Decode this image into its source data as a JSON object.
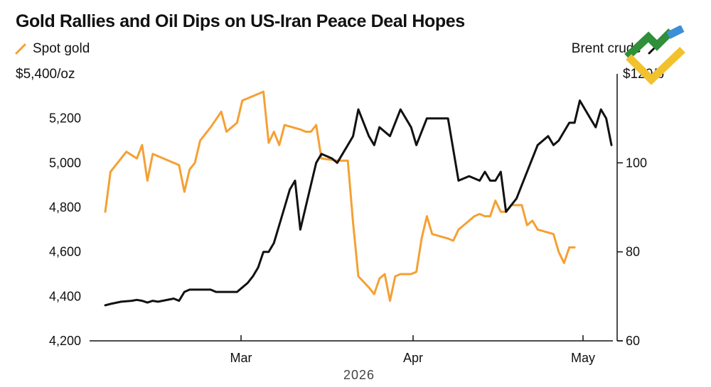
{
  "chart_data": {
    "type": "line",
    "title": "Gold Rallies and Oil Dips on US-Iran Peace Deal Hopes",
    "x_labels": [
      "Mar",
      "Apr",
      "May"
    ],
    "x_axis_caption": "2026",
    "left_axis": {
      "unit_label": "$5,400/oz",
      "ticks": [
        "4,200",
        "4,400",
        "4,600",
        "4,800",
        "5,000",
        "5,200"
      ],
      "ylim": [
        4200,
        5400
      ]
    },
    "right_axis": {
      "unit_label": "$120/b",
      "ticks": [
        "60",
        "80",
        "100"
      ],
      "ylim": [
        60,
        120
      ]
    },
    "grid": false,
    "series": [
      {
        "name": "Spot gold",
        "axis": "left",
        "color": "#f5a033",
        "x": [
          0,
          1,
          4,
          6,
          7,
          8,
          9,
          10,
          14,
          15,
          16,
          17,
          18,
          20,
          22,
          23,
          24,
          25,
          26,
          27,
          30,
          31,
          32,
          33,
          34,
          37,
          38,
          39,
          40,
          41,
          44,
          46,
          47,
          48,
          50,
          51,
          52,
          53,
          54,
          55,
          56,
          58,
          59,
          60,
          61,
          62,
          65,
          66,
          67,
          68,
          70,
          71,
          72,
          73,
          74,
          75,
          76,
          77,
          78,
          79,
          80,
          81,
          82,
          85,
          86,
          87,
          88,
          89
        ],
        "values": [
          4780,
          4960,
          5050,
          5020,
          5080,
          4920,
          5040,
          5030,
          4990,
          4870,
          4970,
          5000,
          5100,
          5160,
          5230,
          5140,
          5160,
          5180,
          5280,
          5290,
          5320,
          5090,
          5140,
          5080,
          5170,
          5150,
          5140,
          5140,
          5170,
          5020,
          5010,
          5010,
          4730,
          4490,
          4440,
          4410,
          4480,
          4500,
          4380,
          4490,
          4500,
          4500,
          4510,
          4660,
          4760,
          4680,
          4660,
          4650,
          4700,
          4720,
          4760,
          4770,
          4760,
          4760,
          4830,
          4780,
          4780,
          4810,
          4810,
          4810,
          4720,
          4740,
          4700,
          4680,
          4600,
          4550,
          4620,
          4620
        ]
      },
      {
        "name": "Brent crude",
        "axis": "right",
        "color": "#111111",
        "x": [
          0,
          1,
          3,
          5,
          6,
          7,
          8,
          9,
          10,
          13,
          14,
          15,
          16,
          17,
          19,
          20,
          21,
          25,
          26,
          27,
          28,
          29,
          30,
          31,
          32,
          34,
          35,
          36,
          37,
          38,
          40,
          41,
          43,
          44,
          46,
          47,
          48,
          50,
          51,
          52,
          54,
          56,
          58,
          59,
          61,
          64,
          65,
          67,
          69,
          71,
          72,
          73,
          74,
          75,
          76,
          78,
          79,
          80,
          82,
          84,
          85,
          86,
          88,
          89,
          90,
          92,
          93,
          94,
          95,
          96
        ],
        "values": [
          68,
          68.3,
          68.8,
          69,
          69.2,
          69,
          68.6,
          69,
          68.8,
          69.5,
          69,
          71,
          71.5,
          71.5,
          71.5,
          71.5,
          71,
          71,
          72,
          73,
          74.5,
          76.5,
          80,
          80,
          82,
          90,
          94,
          96,
          85,
          90,
          100,
          102,
          101,
          100,
          104,
          106,
          112,
          106,
          104,
          108,
          106,
          112,
          108,
          104,
          110,
          110,
          110,
          96,
          97,
          96,
          98,
          96,
          96,
          98,
          89,
          92,
          95,
          98,
          104,
          106,
          104,
          105,
          109,
          109,
          114,
          110,
          108,
          112,
          110,
          104
        ]
      }
    ]
  },
  "legend": {
    "left": {
      "label": "Spot gold",
      "color": "#f5a033"
    },
    "right": {
      "label": "Brent crude",
      "color": "#111111"
    }
  },
  "logo": {
    "name": "corner-brand-logo",
    "colors": [
      "#2f8f3a",
      "#3b8fd9",
      "#f2c12e"
    ]
  }
}
